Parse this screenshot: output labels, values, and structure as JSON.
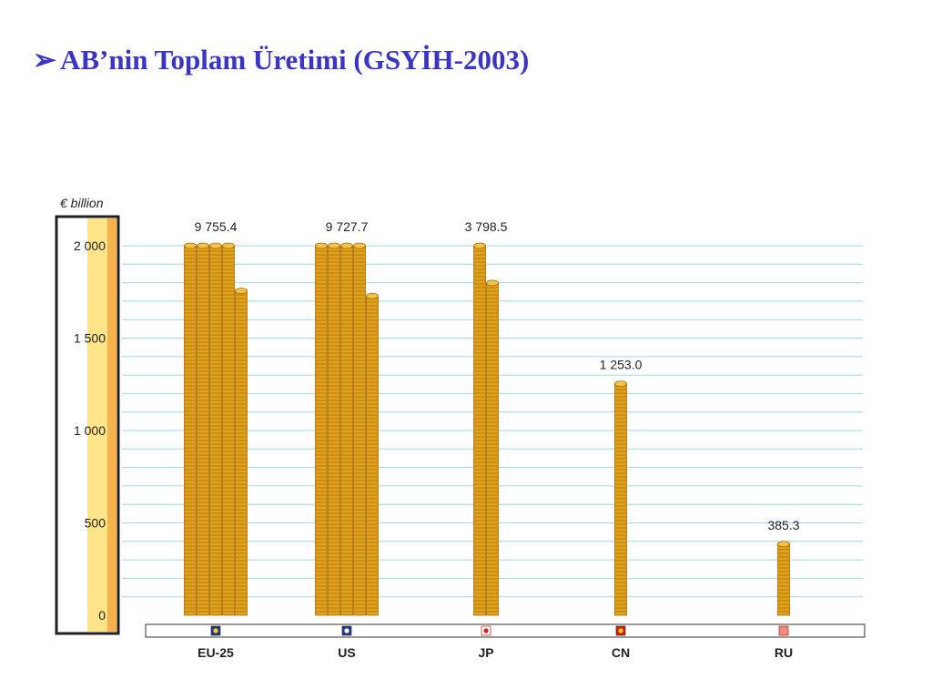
{
  "slide": {
    "bullet": "➢",
    "title": "AB’nin Toplam Üretimi (GSYİH-2003)"
  },
  "chart_data": {
    "type": "bar",
    "unit_label": "€ billion",
    "categories": [
      "EU-25",
      "US",
      "JP",
      "CN",
      "RU"
    ],
    "values": [
      9755.4,
      9727.7,
      3798.5,
      1253.0,
      385.3
    ],
    "value_labels": [
      "9 755.4",
      "9 727.7",
      "3 798.5",
      "1 253.0",
      "385.3"
    ],
    "ylim": [
      0,
      2000
    ],
    "yticks": [
      0,
      500,
      1000,
      1500,
      2000
    ],
    "ytick_labels": [
      "0",
      "500",
      "1 000",
      "1 500",
      "2 000"
    ],
    "axis_max": 2000,
    "grid": true,
    "category_icons": [
      "eu-flag-icon",
      "us-flag-icon",
      "jp-flag-icon",
      "cn-flag-icon",
      "ru-flag-icon"
    ],
    "colors": {
      "coin_face": "#e0a21c",
      "coin_edge": "#a86c08",
      "grid": "#9ed8ea",
      "axis_band_light": "#ffe48a",
      "axis_band_dark": "#f6b14a",
      "title": "#3b35c4"
    }
  }
}
